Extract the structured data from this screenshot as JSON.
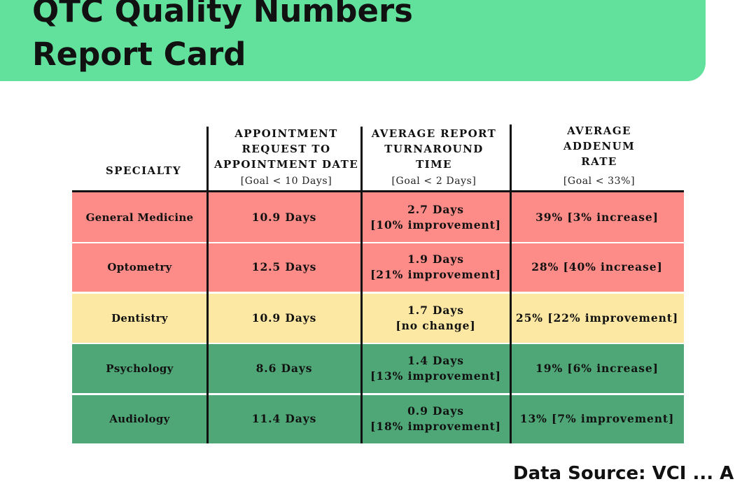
{
  "title": {
    "line1": "QTC Quality Numbers",
    "line2": "Report Card"
  },
  "columns": [
    {
      "title_lines": [
        "SPECIALTY"
      ],
      "goal": ""
    },
    {
      "title_lines": [
        "APPOINTMENT",
        "REQUEST TO",
        "APPOINTMENT DATE"
      ],
      "goal": "[Goal < 10 Days]"
    },
    {
      "title_lines": [
        "AVERAGE REPORT",
        "TURNAROUND",
        "TIME"
      ],
      "goal": "[Goal < 2 Days]"
    },
    {
      "title_lines": [
        "AVERAGE",
        "ADDENUM",
        "RATE"
      ],
      "goal": "[Goal < 33%]"
    }
  ],
  "colors": {
    "red": "#fd8b87",
    "yellow": "#fde8a3",
    "green": "#4fa676",
    "banner": "#62e19d"
  },
  "rows": [
    {
      "specialty": "General Medicine",
      "appointment": "10.9 Days",
      "turnaround": [
        "2.7 Days",
        "[10% improvement]"
      ],
      "addendum": "39% [3% increase]",
      "status": "red"
    },
    {
      "specialty": "Optometry",
      "appointment": "12.5 Days",
      "turnaround": [
        "1.9 Days",
        "[21% improvement]"
      ],
      "addendum": "28% [40% increase]",
      "status": "red"
    },
    {
      "specialty": "Dentistry",
      "appointment": "10.9 Days",
      "turnaround": [
        "1.7 Days",
        "[no change]"
      ],
      "addendum": "25% [22% improvement]",
      "status": "yellow"
    },
    {
      "specialty": "Psychology",
      "appointment": "8.6 Days",
      "turnaround": [
        "1.4 Days",
        "[13% improvement]"
      ],
      "addendum": "19% [6% increase]",
      "status": "green"
    },
    {
      "specialty": "Audiology",
      "appointment": "11.4 Days",
      "turnaround": [
        "0.9 Days",
        "[18% improvement]"
      ],
      "addendum": "13% [7% improvement]",
      "status": "green"
    }
  ],
  "footer": "Data Source: VCI ... A"
}
